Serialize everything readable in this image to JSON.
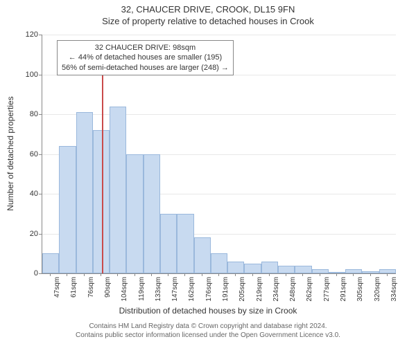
{
  "chart": {
    "type": "histogram",
    "title": "32, CHAUCER DRIVE, CROOK, DL15 9FN",
    "subtitle": "Size of property relative to detached houses in Crook",
    "y_axis": {
      "label": "Number of detached properties",
      "min": 0,
      "max": 120,
      "ticks": [
        0,
        20,
        40,
        60,
        80,
        100,
        120
      ],
      "label_fontsize": 12,
      "tick_fontsize": 11
    },
    "x_axis": {
      "label": "Distribution of detached houses by size in Crook",
      "categories": [
        "47sqm",
        "61sqm",
        "76sqm",
        "90sqm",
        "104sqm",
        "119sqm",
        "133sqm",
        "147sqm",
        "162sqm",
        "176sqm",
        "191sqm",
        "205sqm",
        "219sqm",
        "234sqm",
        "248sqm",
        "262sqm",
        "277sqm",
        "291sqm",
        "305sqm",
        "320sqm",
        "334sqm"
      ],
      "label_fontsize": 12,
      "tick_fontsize": 10
    },
    "values": [
      10,
      64,
      81,
      72,
      84,
      60,
      60,
      30,
      30,
      18,
      10,
      6,
      5,
      6,
      4,
      4,
      2,
      0,
      2,
      1,
      2
    ],
    "bar_fill": "#c8daf0",
    "bar_border": "#9ab8dc",
    "grid_color": "#e8e8e8",
    "axis_color": "#888888",
    "background_color": "#ffffff",
    "marker": {
      "color": "#c94a4a",
      "position_index": 3.55,
      "height_value": 108
    },
    "annotation": {
      "lines": [
        "32 CHAUCER DRIVE: 98sqm",
        "← 44% of detached houses are smaller (195)",
        "56% of semi-detached houses are larger (248) →"
      ],
      "border_color": "#888888"
    },
    "footer": {
      "line1": "Contains HM Land Registry data © Crown copyright and database right 2024.",
      "line2": "Contains public sector information licensed under the Open Government Licence v3.0."
    }
  }
}
